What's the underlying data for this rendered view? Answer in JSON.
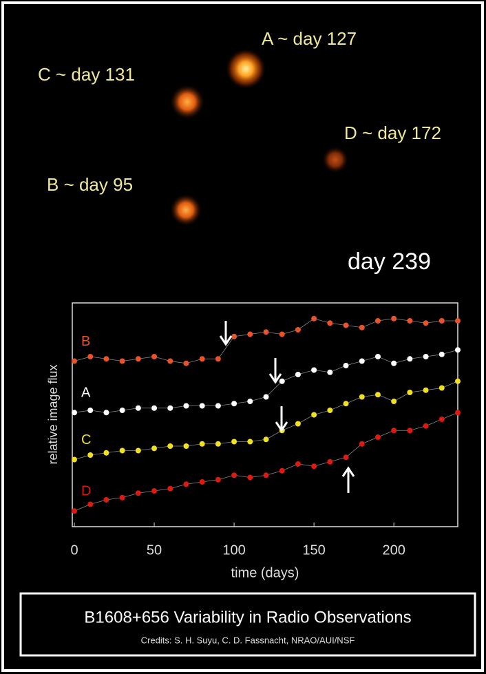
{
  "lens_image": {
    "labels": [
      "A ~ day 127",
      "C ~ day 131",
      "D ~ day 172",
      "B ~ day 95"
    ],
    "frame_label": "day 239"
  },
  "chart_data": {
    "type": "scatter",
    "xlabel": "time (days)",
    "ylabel": "relative image flux",
    "x": [
      0,
      10,
      20,
      30,
      40,
      50,
      60,
      70,
      80,
      90,
      100,
      110,
      120,
      130,
      140,
      150,
      160,
      170,
      180,
      190,
      200,
      210,
      220,
      230,
      240
    ],
    "series": [
      {
        "name": "B",
        "color": "#e8532a",
        "values": [
          7.4,
          7.6,
          7.5,
          7.4,
          7.5,
          7.6,
          7.4,
          7.3,
          7.5,
          7.5,
          8.5,
          8.6,
          8.7,
          8.6,
          8.8,
          9.3,
          9.1,
          9.0,
          8.9,
          9.2,
          9.3,
          9.2,
          9.1,
          9.2,
          9.2
        ]
      },
      {
        "name": "A",
        "color": "#ffffff",
        "values": [
          5.1,
          5.2,
          5.1,
          5.2,
          5.3,
          5.3,
          5.3,
          5.4,
          5.4,
          5.4,
          5.5,
          5.6,
          5.8,
          6.5,
          6.8,
          7.0,
          6.9,
          7.2,
          7.4,
          7.6,
          7.3,
          7.5,
          7.6,
          7.7,
          7.9
        ]
      },
      {
        "name": "C",
        "color": "#f0e020",
        "values": [
          3.0,
          3.2,
          3.3,
          3.4,
          3.4,
          3.5,
          3.6,
          3.6,
          3.7,
          3.7,
          3.8,
          3.8,
          3.9,
          4.3,
          4.6,
          5.0,
          5.2,
          5.5,
          5.8,
          5.9,
          5.6,
          6.0,
          6.1,
          6.2,
          6.5
        ]
      },
      {
        "name": "D",
        "color": "#dd1a10",
        "values": [
          0.7,
          1.0,
          1.2,
          1.3,
          1.5,
          1.6,
          1.7,
          1.9,
          2.0,
          2.1,
          2.3,
          2.2,
          2.3,
          2.5,
          2.8,
          2.7,
          2.9,
          3.1,
          3.7,
          4.0,
          4.3,
          4.3,
          4.5,
          4.8,
          5.1
        ]
      }
    ],
    "xlim": [
      0,
      240
    ],
    "xticks": [
      0,
      50,
      100,
      150,
      200
    ],
    "ylim": [
      0,
      10
    ]
  },
  "caption": {
    "title": "B1608+656 Variability in Radio Observations",
    "credits": "Credits: S. H. Suyu, C. D. Fassnacht, NRAO/AUI/NSF"
  }
}
